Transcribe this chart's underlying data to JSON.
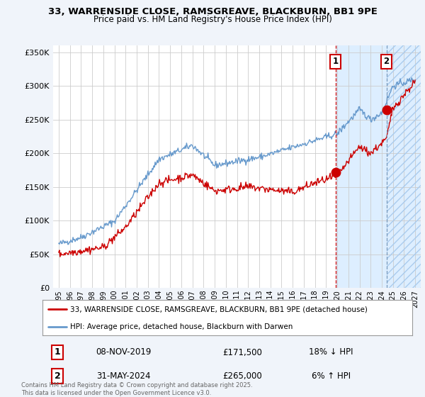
{
  "title1": "33, WARRENSIDE CLOSE, RAMSGREAVE, BLACKBURN, BB1 9PE",
  "title2": "Price paid vs. HM Land Registry's House Price Index (HPI)",
  "legend1": "33, WARRENSIDE CLOSE, RAMSGREAVE, BLACKBURN, BB1 9PE (detached house)",
  "legend2": "HPI: Average price, detached house, Blackburn with Darwen",
  "footer": "Contains HM Land Registry data © Crown copyright and database right 2025.\nThis data is licensed under the Open Government Licence v3.0.",
  "red_color": "#cc0000",
  "blue_color": "#6699cc",
  "shade_color": "#ddeeff",
  "marker1_date": 2019.85,
  "marker1_value": 171500,
  "marker2_date": 2024.42,
  "marker2_value": 265000,
  "vline1_date": 2019.85,
  "vline2_date": 2024.42,
  "ylim_min": 0,
  "ylim_max": 360000,
  "xlim_min": 1994.5,
  "xlim_max": 2027.5,
  "xlabel_years": [
    1995,
    1996,
    1997,
    1998,
    1999,
    2000,
    2001,
    2002,
    2003,
    2004,
    2005,
    2006,
    2007,
    2008,
    2009,
    2010,
    2011,
    2012,
    2013,
    2014,
    2015,
    2016,
    2017,
    2018,
    2019,
    2020,
    2021,
    2022,
    2023,
    2024,
    2025,
    2026,
    2027
  ],
  "yticks": [
    0,
    50000,
    100000,
    150000,
    200000,
    250000,
    300000,
    350000
  ],
  "background_color": "#f0f4fa",
  "plot_bg": "#ffffff",
  "grid_color": "#cccccc"
}
